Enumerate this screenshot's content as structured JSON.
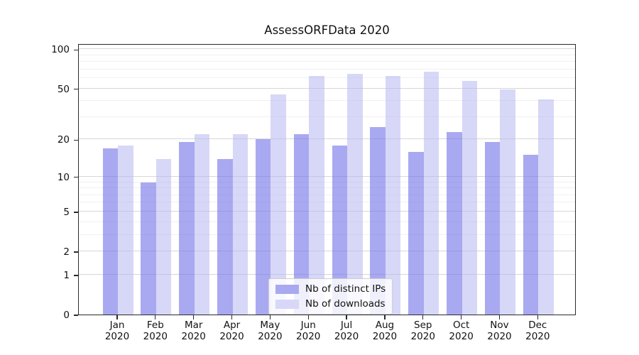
{
  "chart_data": {
    "type": "bar",
    "title": "AssessORFData 2020",
    "xlabel": "",
    "ylabel": "",
    "x_tick_year": "2020",
    "categories": [
      "Jan",
      "Feb",
      "Mar",
      "Apr",
      "May",
      "Jun",
      "Jul",
      "Aug",
      "Sep",
      "Oct",
      "Nov",
      "Dec"
    ],
    "series": [
      {
        "name": "Nb of distinct IPs",
        "color_hex": "#7474e9",
        "alpha": 0.62,
        "legend_color_hex": "#a9a9f0",
        "values": [
          17,
          9,
          19,
          14,
          20,
          22,
          18,
          25,
          16,
          23,
          19,
          15
        ]
      },
      {
        "name": "Nb of downloads",
        "color_hex": "#b6b6f2",
        "alpha": 0.55,
        "legend_color_hex": "#d7d7f8",
        "values": [
          18,
          14,
          22,
          22,
          45,
          62,
          65,
          62,
          67,
          57,
          49,
          41
        ]
      }
    ],
    "yscale": "log1p",
    "yticks": [
      0,
      1,
      2,
      5,
      10,
      20,
      50,
      100
    ],
    "minor_gridlines": [
      3,
      4,
      6,
      7,
      8,
      9,
      30,
      40,
      60,
      70,
      80,
      90
    ],
    "ylim": [
      0,
      111
    ],
    "grid": "on",
    "legend_position": "lower center"
  }
}
